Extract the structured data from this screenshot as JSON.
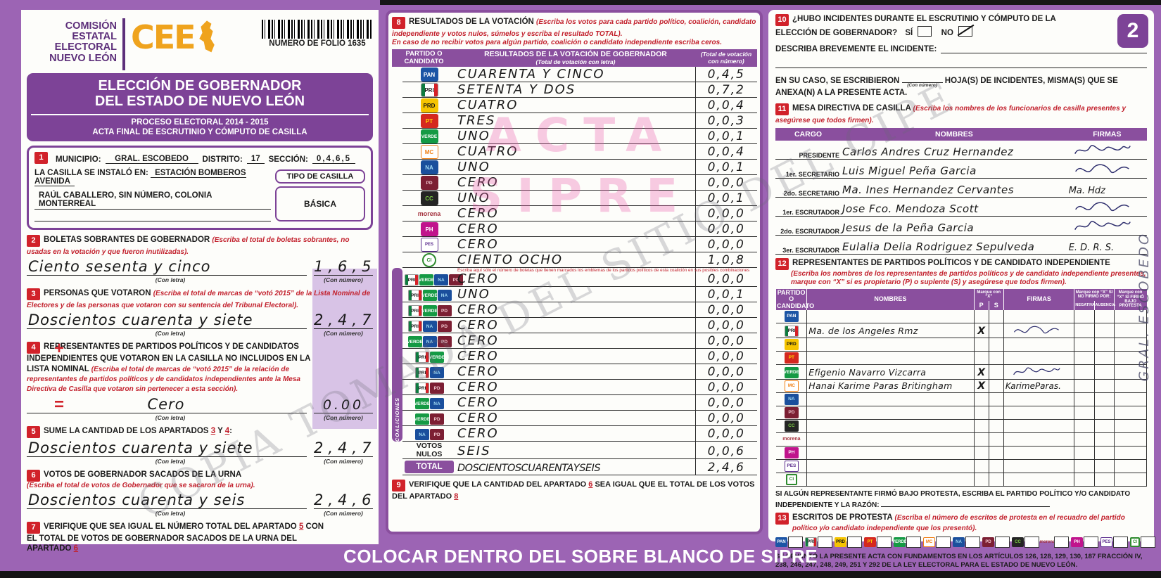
{
  "page": {
    "number_badge": "2",
    "bottom_bar": "COLOCAR DENTRO DEL SOBRE BLANCO DE SIPRE",
    "watermark_diagonal": "COPIA TOMADA DEL SITIO DEL CIPE",
    "watermark_pink_line1": "ACTA",
    "watermark_pink_line2": "SIPRE",
    "side_note": "GRAL. ESCOBEDO"
  },
  "header": {
    "org_line1": "COMISIÓN",
    "org_line2": "ESTATAL",
    "org_line3": "ELECTORAL",
    "org_line4": "NUEVO LEÓN",
    "logo_text": "CEE",
    "folio_label": "NUMERO DE FOLIO 1635",
    "title_line1": "ELECCIÓN DE GOBERNADOR",
    "title_line2": "DEL ESTADO DE NUEVO LEÓN",
    "subtitle_line1": "PROCESO ELECTORAL  2014 - 2015",
    "subtitle_line2": "ACTA FINAL DE ESCRUTINIO Y CÓMPUTO DE CASILLA"
  },
  "labels": {
    "con_letra": "(Con letra)",
    "con_numero": "(Con número)"
  },
  "sec1": {
    "num": "1",
    "municipio_label": "MUNICIPIO:",
    "municipio": "GRAL. ESCOBEDO",
    "distrito_label": "DISTRITO:",
    "distrito": "17",
    "seccion_label": "SECCIÓN:",
    "seccion": "0465",
    "instalada_label": "LA CASILLA SE INSTALÓ EN:",
    "direccion1": "ESTACIÓN BOMBEROS AVENIDA",
    "direccion2": "RAÚL CABALLERO, SIN NÚMERO, COLONIA MONTERREAL",
    "tipo_label": "TIPO DE CASILLA",
    "tipo": "BÁSICA"
  },
  "sec2": {
    "num": "2",
    "title": "BOLETAS SOBRANTES DE GOBERNADOR",
    "instr": "(Escriba el total de boletas sobrantes, no usadas en la votación y que fueron inutilizadas).",
    "letra": "Ciento sesenta y cinco",
    "numero": "165"
  },
  "sec3": {
    "num": "3",
    "title": "PERSONAS QUE VOTARON",
    "instr": "(Escriba el total de marcas de “votó 2015” de la Lista Nominal de Electores y de las personas que votaron con su sentencia del Tribunal Electoral).",
    "letra": "Doscientos cuarenta y siete",
    "numero": "247"
  },
  "sec4": {
    "num": "4",
    "title": "REPRESENTANTES DE PARTIDOS POLÍTICOS Y DE CANDIDATOS INDEPENDIENTES QUE VOTARON EN LA CASILLA NO INCLUIDOS EN LA LISTA NOMINAL",
    "instr": "(Escriba el total de marcas de “votó 2015” de la relación de representantes de partidos políticos y de candidatos independientes ante la Mesa Directiva de Casilla que votaron sin pertenecer a esta sección).",
    "letra": "Cero",
    "numero": "0.00",
    "operator": "+"
  },
  "sec5": {
    "num": "5",
    "pre": "SUME LA CANTIDAD DE LOS APARTADOS",
    "ref1": "3",
    "mid": "Y",
    "ref2": "4",
    "post": ":",
    "letra": "Doscientos cuarenta y siete",
    "numero": "247",
    "operator": "="
  },
  "sec6": {
    "num": "6",
    "title": "VOTOS DE GOBERNADOR SACADOS DE LA URNA",
    "instr": "(Escriba el total de votos de Gobernador que se sacaron de la urna).",
    "letra": "Doscientos cuarenta y seis",
    "numero": "246"
  },
  "sec7": {
    "num": "7",
    "part1": "VERIFIQUE QUE SEA IGUAL EL NÚMERO TOTAL DEL APARTADO",
    "ref1": "5",
    "part2": "CON EL TOTAL DE VOTOS DE GOBERNADOR SACADOS DE LA URNA DEL APARTADO",
    "ref2": "6"
  },
  "parties_map": {
    "PAN": {
      "label": "PAN"
    },
    "PRI": {
      "label": "PRI"
    },
    "PRD": {
      "label": "PRD"
    },
    "PT": {
      "label": "PT"
    },
    "VERDE": {
      "label": "VERDE"
    },
    "MC": {
      "label": "MC"
    },
    "NA": {
      "label": "NA"
    },
    "PD": {
      "label": "PD"
    },
    "CC": {
      "label": "CC"
    },
    "MORENA": {
      "label": "morena"
    },
    "PH": {
      "label": "PH"
    },
    "PES": {
      "label": "PES"
    },
    "CI": {
      "label": "CI"
    }
  },
  "results": {
    "num": "8",
    "title": "RESULTADOS DE LA VOTACIÓN",
    "instr1": "(Escriba los votos para cada partido político, coalición, candidato independiente y votos nulos, súmelos y escriba el resultado TOTAL).",
    "instr2": "En caso de no recibir votos para algún partido, coalición o candidato independiente escriba ceros.",
    "col1a": "PARTIDO O",
    "col1b": "CANDIDATO",
    "col2": "RESULTADOS DE LA VOTACIÓN DE GOBERNADOR",
    "col2sub": "(Total de votación con letra)",
    "col3": "(Total de votación con número)",
    "coalition_label": "COALICIONES",
    "coalition_note": "Escriba aquí sólo el número de boletas que tienen marcados los emblemas de los partidos políticos de esta coalición en sus posibles combinaciones",
    "party_rows": [
      {
        "party": "PAN",
        "letra": "CUARENTA Y CINCO",
        "numero": "045"
      },
      {
        "party": "PRI",
        "letra": "SETENTA Y DOS",
        "numero": "072"
      },
      {
        "party": "PRD",
        "letra": "CUATRO",
        "numero": "004"
      },
      {
        "party": "PT",
        "letra": "TRES",
        "numero": "003"
      },
      {
        "party": "VERDE",
        "letra": "UNO",
        "numero": "001"
      },
      {
        "party": "MC",
        "letra": "CUATRO",
        "numero": "004"
      },
      {
        "party": "NA",
        "letra": "UNO",
        "numero": "001"
      },
      {
        "party": "PD",
        "letra": "CERO",
        "numero": "000"
      },
      {
        "party": "CC",
        "letra": "UNO",
        "numero": "001"
      },
      {
        "party": "MORENA",
        "letra": "CERO",
        "numero": "000"
      },
      {
        "party": "PH",
        "letra": "CERO",
        "numero": "000"
      },
      {
        "party": "PES",
        "letra": "CERO",
        "numero": "000"
      },
      {
        "party": "CI",
        "letra": "CIENTO OCHO",
        "numero": "108"
      }
    ],
    "coalition_rows": [
      {
        "members": [
          "PRI",
          "VERDE",
          "NA",
          "PD"
        ],
        "letra": "CERO",
        "numero": "000"
      },
      {
        "members": [
          "PRI",
          "VERDE",
          "NA"
        ],
        "letra": "UNO",
        "numero": "001"
      },
      {
        "members": [
          "PRI",
          "VERDE",
          "PD"
        ],
        "letra": "CERO",
        "numero": "000"
      },
      {
        "members": [
          "PRI",
          "NA",
          "PD"
        ],
        "letra": "CERO",
        "numero": "000"
      },
      {
        "members": [
          "VERDE",
          "NA",
          "PD"
        ],
        "letra": "CERO",
        "numero": "000"
      },
      {
        "members": [
          "PRI",
          "VERDE"
        ],
        "letra": "CERO",
        "numero": "000"
      },
      {
        "members": [
          "PRI",
          "NA"
        ],
        "letra": "CERO",
        "numero": "000"
      },
      {
        "members": [
          "PRI",
          "PD"
        ],
        "letra": "CERO",
        "numero": "000"
      },
      {
        "members": [
          "VERDE",
          "NA"
        ],
        "letra": "CERO",
        "numero": "000"
      },
      {
        "members": [
          "VERDE",
          "PD"
        ],
        "letra": "CERO",
        "numero": "000"
      },
      {
        "members": [
          "NA",
          "PD"
        ],
        "letra": "CERO",
        "numero": "000"
      }
    ],
    "nulos_label": "VOTOS NULOS",
    "nulos_letra": "SEIS",
    "nulos_numero": "006",
    "total_label": "TOTAL",
    "total_letra": "DOSCIENTOSCUARENTAYSEIS",
    "total_numero": "246"
  },
  "sec9": {
    "num": "9",
    "part1": "VERIFIQUE QUE LA CANTIDAD DEL APARTADO",
    "ref1": "6",
    "part2": "SEA IGUAL QUE EL TOTAL DE LOS VOTOS DEL APARTADO",
    "ref2": "8"
  },
  "sec10": {
    "num": "10",
    "question": "¿HUBO INCIDENTES DURANTE EL ESCRUTINIO Y CÓMPUTO DE LA ELECCIÓN DE GOBERNADOR?",
    "si": "SÍ",
    "no": "NO",
    "describe": "DESCRIBA BREVEMENTE EL INCIDENTE:",
    "anexa1": "EN SU CASO, SE ESCRIBIERON",
    "anexa_blank": "(Con número)",
    "anexa2": "HOJA(S) DE INCIDENTES, MISMA(S) QUE SE",
    "anexa3": "ANEXA(N) A LA PRESENTE ACTA."
  },
  "sec11": {
    "num": "11",
    "title": "MESA DIRECTIVA DE CASILLA",
    "instr": "(Escriba los nombres de los funcionarios de casilla presentes y asegúrese que todos firmen).",
    "h_cargo": "CARGO",
    "h_nombres": "NOMBRES",
    "h_firmas": "FIRMAS",
    "rows": [
      {
        "cargo": "PRESIDENTE",
        "nombre": "Carlos Andres Cruz Hernandez",
        "firma_type": "scribble"
      },
      {
        "cargo": "1er. SECRETARIO",
        "nombre": "Luis Miguel Peña Garcia",
        "firma_type": "scribble"
      },
      {
        "cargo": "2do. SECRETARIO",
        "nombre": "Ma. Ines Hernandez Cervantes",
        "firma_type": "text",
        "firma_text": "Ma. Hdz"
      },
      {
        "cargo": "1er. ESCRUTADOR",
        "nombre": "Jose Fco. Mendoza Scott",
        "firma_type": "scribble"
      },
      {
        "cargo": "2do. ESCRUTADOR",
        "nombre": "Jesus de la Peña Garcia",
        "firma_type": "scribble"
      },
      {
        "cargo": "3er. ESCRUTADOR",
        "nombre": "Eulalia Delia Rodriguez Sepulveda",
        "firma_type": "text",
        "firma_text": "E. D. R. S."
      }
    ]
  },
  "sec12": {
    "num": "12",
    "title": "REPRESENTANTES DE PARTIDOS POLÍTICOS Y DE CANDIDATO INDEPENDIENTE",
    "instr1": "(Escriba los nombres de los representantes de partidos políticos y de candidato independiente presentes,",
    "instr2": "marque con “X” si es propietario (P) o suplente (S) y asegúrese que todos firmen).",
    "h_party1": "PARTIDO O",
    "h_party2": "CANDIDATO",
    "h_nombres": "NOMBRES",
    "h_marque": "Marque con “X”",
    "h_p": "P",
    "h_s": "S",
    "h_firmas": "FIRMAS",
    "h_nofirmo": "Marque con “X” SI NO FIRMÓ POR:",
    "h_negativa": "NEGATIVA",
    "h_ausencia": "AUSENCIA",
    "h_protesta": "Marque con “X” SI FIRMÓ BAJO PROTESTA",
    "rows": [
      {
        "party": "PAN"
      },
      {
        "party": "PRI",
        "nombre": "Ma. de los Angeles Rmz",
        "p": "X",
        "firma_type": "scribble"
      },
      {
        "party": "PRD"
      },
      {
        "party": "PT"
      },
      {
        "party": "VERDE",
        "nombre": "Efigenio Navarro Vizcarra",
        "p": "X",
        "firma_type": "scribble"
      },
      {
        "party": "MC",
        "nombre": "Hanai Karime Paras Britingham",
        "p": "X",
        "firma_type": "text",
        "firma_text": "KarimeParas."
      },
      {
        "party": "NA"
      },
      {
        "party": "PD"
      },
      {
        "party": "CC"
      },
      {
        "party": "MORENA"
      },
      {
        "party": "PH"
      },
      {
        "party": "PES"
      },
      {
        "party": "CI"
      }
    ],
    "protest_note1": "SI ALGÚN REPRESENTANTE FIRMÓ BAJO PROTESTA, ESCRIBA EL PARTIDO POLÍTICO Y/O CANDIDATO",
    "protest_note2": "INDEPENDIENTE Y LA RAZÓN:"
  },
  "sec13": {
    "num": "13",
    "title": "ESCRITOS DE PROTESTA",
    "instr1": "(Escriba el número de escritos de protesta en el recuadro del partido",
    "instr2": "político y/o candidato independiente que los presentó).",
    "parties": [
      "PAN",
      "PRI",
      "PRD",
      "PT",
      "VERDE",
      "MC",
      "NA",
      "PD",
      "CC",
      "MORENA",
      "PH",
      "PES",
      "CI"
    ]
  },
  "legal": "SE LEVANTÓ LA PRESENTE ACTA CON FUNDAMENTOS EN LOS ARTÍCULOS 126, 128, 129, 130, 187 FRACCIÓN IV, 238, 246, 247, 248, 249, 251 Y 292 DE LA LEY ELECTORAL PARA EL ESTADO DE NUEVO LEÓN."
}
